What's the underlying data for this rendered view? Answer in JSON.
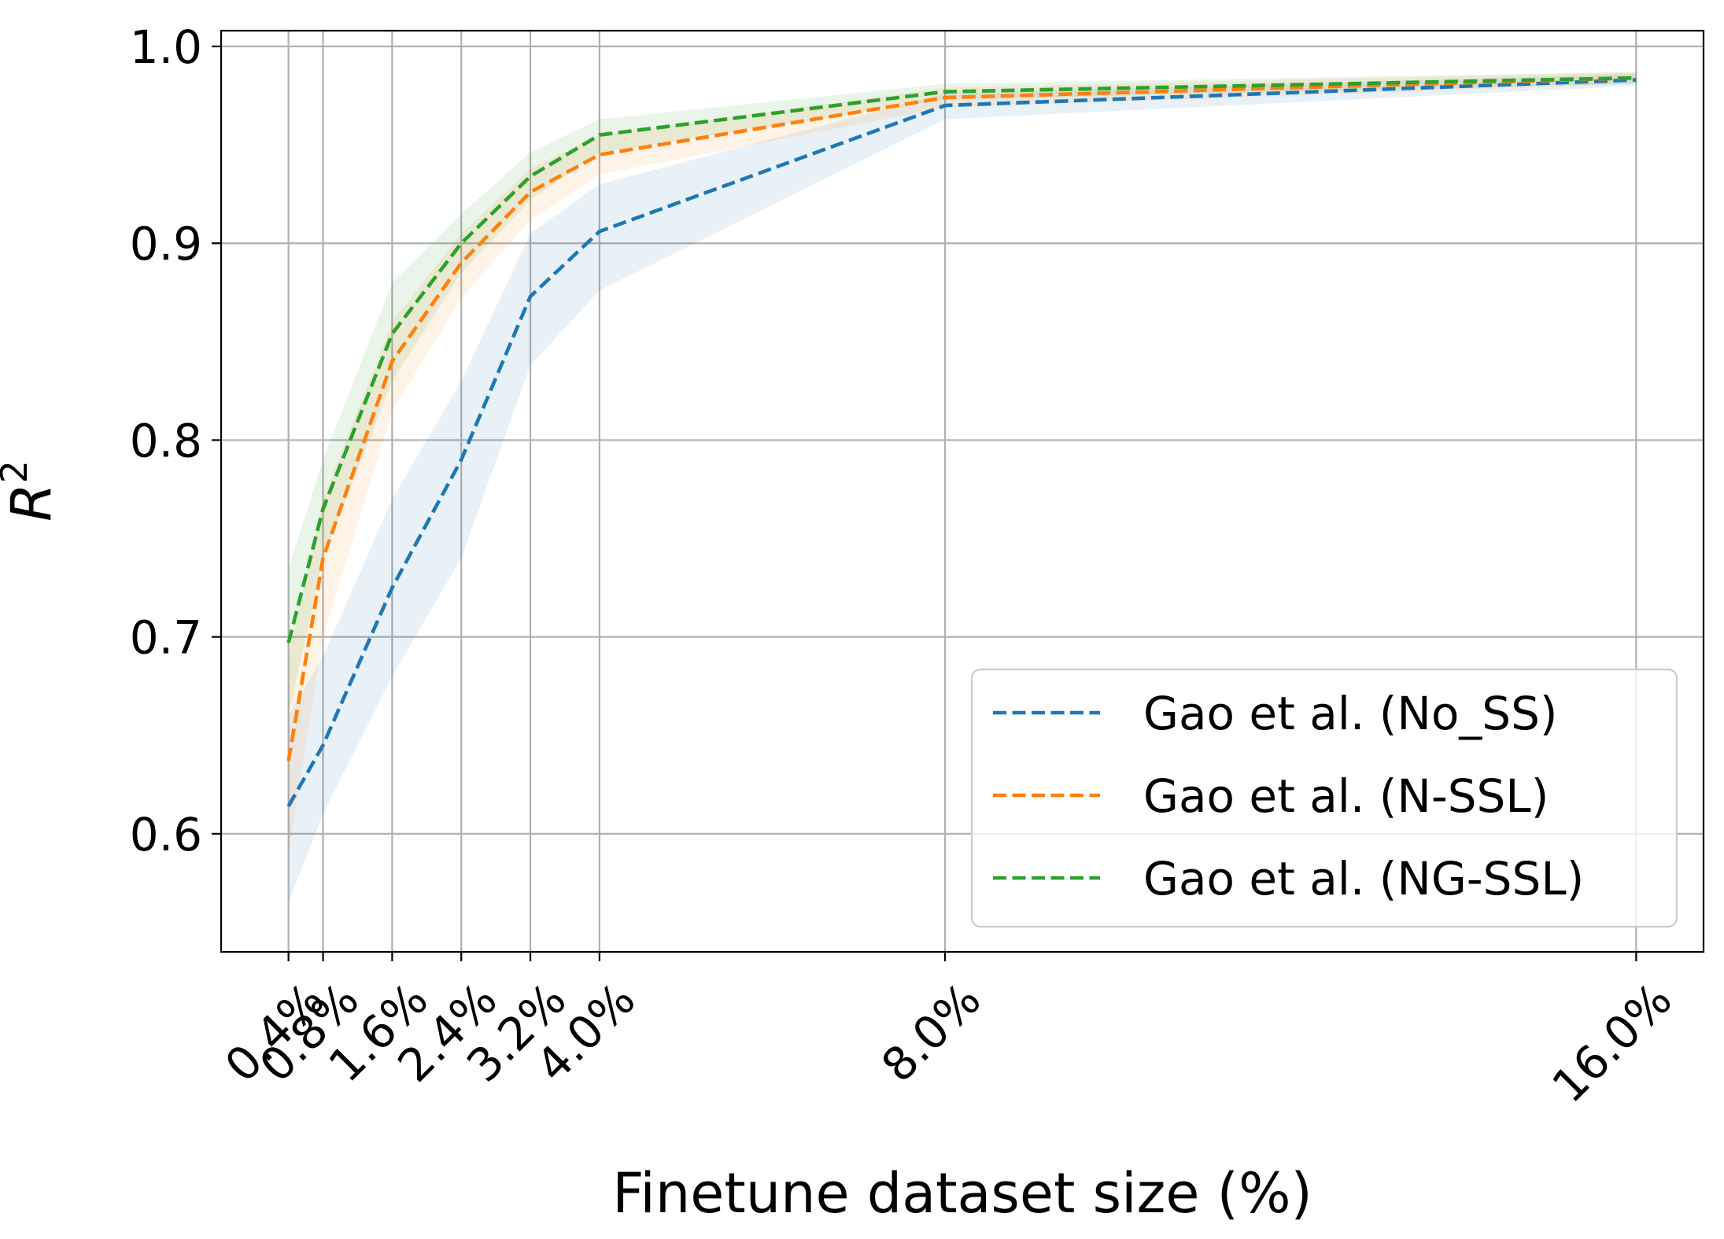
{
  "chart_data": {
    "type": "line",
    "title": "",
    "xlabel": "Finetune dataset size (%)",
    "ylabel": "R",
    "ylabel_superscript": "2",
    "x": [
      0.4,
      0.8,
      1.6,
      2.4,
      3.2,
      4.0,
      8.0,
      16.0
    ],
    "x_tick_labels": [
      "0.4%",
      "0.8%",
      "1.6%",
      "2.4%",
      "3.2%",
      "4.0%",
      "8.0%",
      "16.0%"
    ],
    "y_ticks": [
      0.6,
      0.7,
      0.8,
      0.9,
      1.0
    ],
    "y_tick_labels": [
      "0.6",
      "0.7",
      "0.8",
      "0.9",
      "1.0"
    ],
    "xlim": [
      -0.38,
      16.78
    ],
    "ylim": [
      0.54,
      1.008
    ],
    "grid": true,
    "legend_position": "lower-right",
    "line_style": "dashed",
    "series": [
      {
        "name": "Gao et al. (No_SS)",
        "color": "#1f77b4",
        "values": [
          0.614,
          0.645,
          0.725,
          0.79,
          0.873,
          0.906,
          0.97,
          0.983
        ],
        "lower": [
          0.565,
          0.61,
          0.68,
          0.74,
          0.838,
          0.876,
          0.963,
          0.98
        ],
        "upper": [
          0.66,
          0.69,
          0.77,
          0.83,
          0.905,
          0.93,
          0.976,
          0.986
        ]
      },
      {
        "name": "Gao et al. (N-SSL)",
        "color": "#ff7f0e",
        "values": [
          0.637,
          0.74,
          0.84,
          0.89,
          0.926,
          0.945,
          0.974,
          0.984
        ],
        "lower": [
          0.59,
          0.7,
          0.815,
          0.872,
          0.912,
          0.935,
          0.969,
          0.981
        ],
        "upper": [
          0.69,
          0.77,
          0.86,
          0.905,
          0.938,
          0.955,
          0.979,
          0.987
        ]
      },
      {
        "name": "Gao et al. (NG-SSL)",
        "color": "#2ca02c",
        "values": [
          0.697,
          0.765,
          0.854,
          0.9,
          0.934,
          0.955,
          0.977,
          0.984
        ],
        "lower": [
          0.66,
          0.74,
          0.83,
          0.885,
          0.922,
          0.946,
          0.973,
          0.981
        ],
        "upper": [
          0.735,
          0.79,
          0.88,
          0.915,
          0.946,
          0.963,
          0.981,
          0.987
        ]
      }
    ]
  }
}
